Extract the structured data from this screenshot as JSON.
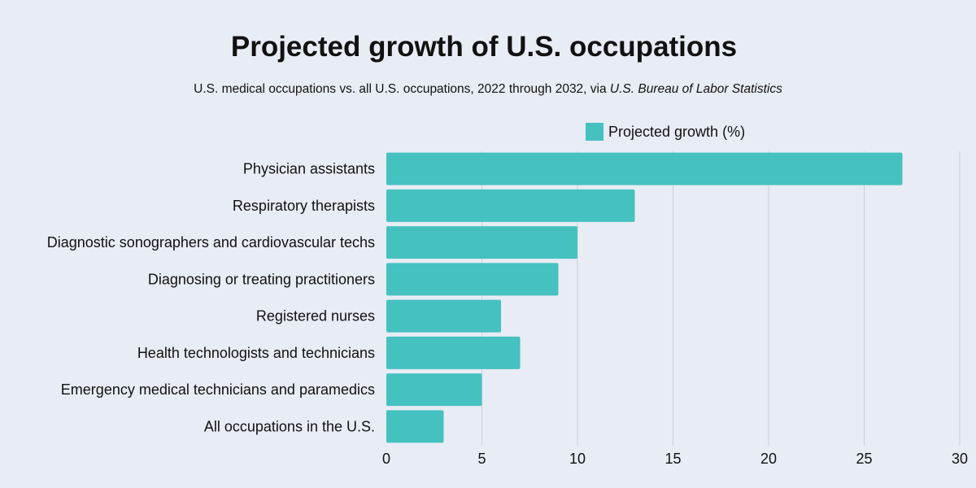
{
  "colors": {
    "background": "#e8ecf5",
    "bar": "#45c1c0",
    "grid": "#c9cfd9"
  },
  "chart_data": {
    "type": "bar",
    "orientation": "horizontal",
    "title": "Projected growth of U.S. occupations",
    "subtitle": "U.S. medical occupations  vs. all U.S. occupations, 2022 through 2032, via",
    "subtitle_source": "U.S. Bureau of Labor Statistics",
    "legend": {
      "placement": "top-right",
      "entries": [
        "Projected growth (%)"
      ]
    },
    "categories": [
      "Physician assistants",
      "Respiratory therapists",
      "Diagnostic sonographers and cardiovascular techs",
      "Diagnosing or treating practitioners",
      "Registered nurses",
      "Health technologists and technicians",
      "Emergency medical technicians and paramedics",
      "All occupations in the U.S."
    ],
    "series": [
      {
        "name": "Projected growth (%)",
        "values": [
          27,
          13,
          10,
          9,
          6,
          7,
          5,
          3
        ]
      }
    ],
    "xlim": [
      0,
      30
    ],
    "xticks": [
      "0",
      "5",
      "10",
      "15",
      "20",
      "25",
      "30"
    ],
    "grid": true
  }
}
